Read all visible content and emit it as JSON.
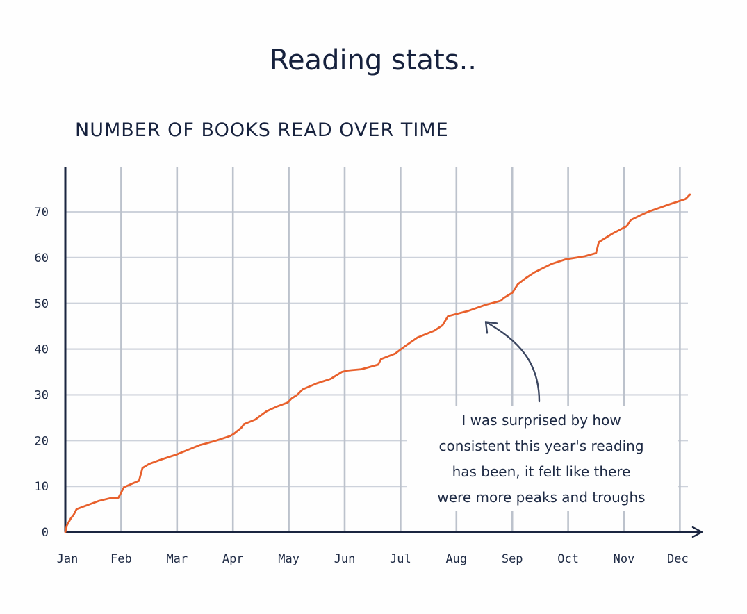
{
  "title": "Reading stats..",
  "chart_data": {
    "type": "line",
    "title": "NUMBER OF BOOKS READ OVER TIME",
    "xlabel": "",
    "ylabel": "",
    "x_ticks": [
      "Jan",
      "Feb",
      "Mar",
      "Apr",
      "May",
      "Jun",
      "Jul",
      "Aug",
      "Sep",
      "Oct",
      "Nov",
      "Dec"
    ],
    "y_ticks": [
      0,
      10,
      20,
      30,
      40,
      50,
      60,
      70
    ],
    "xlim": [
      0,
      11.2
    ],
    "ylim": [
      0,
      77
    ],
    "grid": true,
    "line_color": "#e8602c",
    "series": [
      {
        "x": [
          0,
          0.03,
          0.1,
          0.15,
          0.2,
          0.4,
          0.6,
          0.8,
          0.95,
          1.05,
          1.2,
          1.32,
          1.38,
          1.5,
          1.7,
          2.0,
          2.2,
          2.4,
          2.5,
          2.7,
          2.95,
          3.02,
          3.15,
          3.2,
          3.4,
          3.6,
          3.8,
          3.98,
          4.05,
          4.15,
          4.25,
          4.5,
          4.75,
          4.95,
          5.05,
          5.3,
          5.6,
          5.65,
          5.9,
          6.1,
          6.3,
          6.6,
          6.75,
          6.85,
          7.2,
          7.5,
          7.8,
          7.85,
          8.0,
          8.1,
          8.25,
          8.4,
          8.7,
          8.95,
          9.3,
          9.5,
          9.55,
          9.8,
          10.05,
          10.12,
          10.3,
          10.45,
          10.8,
          11.1,
          11.18
        ],
        "y": [
          0,
          1.5,
          3,
          3.8,
          5,
          5.9,
          6.8,
          7.4,
          7.5,
          9.8,
          10.6,
          11.2,
          14,
          14.9,
          15.8,
          17,
          18,
          19,
          19.3,
          20,
          21,
          21.5,
          22.8,
          23.6,
          24.6,
          26.4,
          27.5,
          28.3,
          29.2,
          30,
          31.2,
          32.5,
          33.5,
          35,
          35.3,
          35.6,
          36.6,
          37.8,
          39,
          40.8,
          42.5,
          44,
          45.2,
          47.2,
          48.3,
          49.6,
          50.6,
          51.2,
          52.3,
          54.2,
          55.6,
          56.8,
          58.6,
          59.6,
          60.3,
          61,
          63.4,
          65.3,
          66.9,
          68.2,
          69.3,
          70.1,
          71.6,
          72.8,
          73.8
        ]
      }
    ],
    "annotation": {
      "lines": [
        "I was surprised by how",
        "consistent this year's reading",
        "has been, it felt like there",
        "were more peaks and troughs"
      ],
      "points_to": {
        "x": 7.5,
        "y": 49.6
      }
    }
  }
}
